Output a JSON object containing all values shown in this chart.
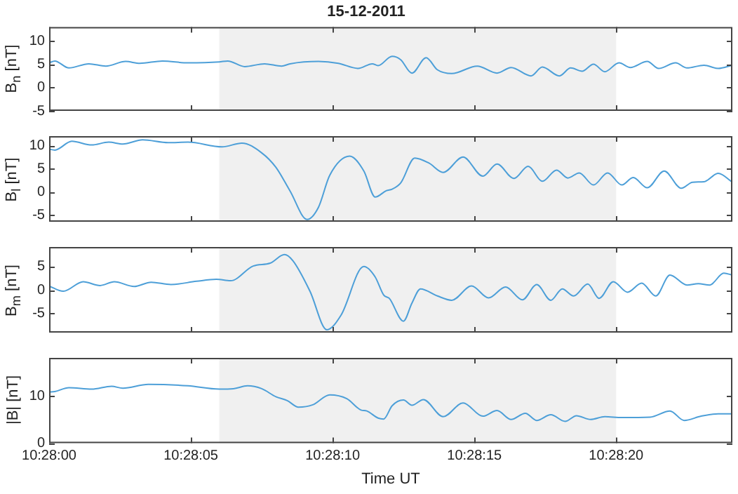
{
  "chart_data": [
    {
      "type": "line",
      "title": "15-12-2011",
      "ylabel": "B$_{n}$ [nT]",
      "tick_labels": "y",
      "xlim": [
        10.466667,
        10.473362
      ],
      "xticks": [
        10.466667,
        10.468056,
        10.469445,
        10.470834,
        10.472223
      ],
      "ylim": [
        -5,
        13
      ],
      "yticks": [
        -5,
        0,
        5,
        10
      ],
      "bands": [
        {
          "axis": "x",
          "from": 10.468334,
          "to": 10.472223,
          "color": "#f0f0f0"
        }
      ],
      "x": [
        10.466667,
        10.466723,
        10.466861,
        10.467056,
        10.467223,
        10.467417,
        10.467556,
        10.467778,
        10.468028,
        10.468334,
        10.468417,
        10.468584,
        10.468778,
        10.468945,
        10.469028,
        10.469306,
        10.469501,
        10.469695,
        10.469834,
        10.46989,
        10.470028,
        10.470111,
        10.470222,
        10.470361,
        10.470472,
        10.470612,
        10.470862,
        10.471056,
        10.471194,
        10.471389,
        10.4715,
        10.471667,
        10.471778,
        10.471889,
        10.472001,
        10.472112,
        10.472251,
        10.472362,
        10.472528,
        10.472639,
        10.472806,
        10.472917,
        10.473084,
        10.473223,
        10.473362
      ],
      "series": [
        {
          "color": "#4d9fd8",
          "values": [
            5.3,
            5.7,
            4.2,
            5.1,
            4.6,
            5.6,
            5.2,
            5.7,
            5.3,
            5.5,
            5.7,
            4.5,
            5.1,
            4.6,
            5.1,
            5.6,
            5.2,
            4.1,
            5.1,
            4.7,
            6.7,
            6.0,
            3.1,
            6.4,
            3.8,
            3.0,
            4.6,
            3.1,
            4.3,
            2.5,
            4.4,
            2.5,
            4.2,
            3.5,
            5.0,
            3.4,
            5.3,
            4.3,
            5.6,
            4.1,
            5.3,
            4.2,
            4.8,
            4.1,
            4.8
          ]
        }
      ]
    },
    {
      "type": "line",
      "ylabel": "B$_{l}$ [nT]",
      "tick_labels": "y",
      "xlim": [
        10.466667,
        10.473362
      ],
      "xticks": [
        10.466667,
        10.468056,
        10.469445,
        10.470834,
        10.472223
      ],
      "ylim": [
        -6.4,
        12
      ],
      "yticks": [
        -5,
        0,
        5,
        10
      ],
      "bands": [
        {
          "axis": "x",
          "from": 10.468334,
          "to": 10.472223,
          "color": "#f0f0f0"
        }
      ],
      "x": [
        10.466667,
        10.466723,
        10.466889,
        10.467084,
        10.467251,
        10.46739,
        10.467583,
        10.467834,
        10.468028,
        10.468362,
        10.468556,
        10.46875,
        10.468889,
        10.469028,
        10.469195,
        10.469306,
        10.469417,
        10.469612,
        10.469751,
        10.469862,
        10.469973,
        10.470028,
        10.470111,
        10.47025,
        10.470389,
        10.470528,
        10.470723,
        10.470917,
        10.471056,
        10.471222,
        10.471361,
        10.4715,
        10.471639,
        10.47175,
        10.471861,
        10.472001,
        10.472139,
        10.472279,
        10.47239,
        10.472528,
        10.472694,
        10.472861,
        10.472972,
        10.473084,
        10.473223,
        10.473362
      ],
      "series": [
        {
          "color": "#4d9fd8",
          "values": [
            9.2,
            9.0,
            10.9,
            10.1,
            10.7,
            10.3,
            11.2,
            10.6,
            10.7,
            9.7,
            10.5,
            8.4,
            5.3,
            0.2,
            -5.9,
            -3.3,
            3.6,
            7.7,
            4.5,
            -1.1,
            0.3,
            0.6,
            1.9,
            7.3,
            6.2,
            4.2,
            7.5,
            3.4,
            6.0,
            2.9,
            5.5,
            2.3,
            4.7,
            3.0,
            4.1,
            1.5,
            4.1,
            1.5,
            3.1,
            0.9,
            4.5,
            0.8,
            2.1,
            2.2,
            4.0,
            2.1
          ]
        }
      ]
    },
    {
      "type": "line",
      "ylabel": "B$_{m}$ [nT]",
      "tick_labels": "y",
      "xlim": [
        10.466667,
        10.473362
      ],
      "xticks": [
        10.466667,
        10.468056,
        10.469445,
        10.470834,
        10.472223
      ],
      "ylim": [
        -9,
        9
      ],
      "yticks": [
        -5,
        0,
        5
      ],
      "bands": [
        {
          "axis": "x",
          "from": 10.468334,
          "to": 10.472223,
          "color": "#f0f0f0"
        }
      ],
      "x": [
        10.466667,
        10.466806,
        10.467001,
        10.467167,
        10.467306,
        10.4675,
        10.467667,
        10.467861,
        10.468112,
        10.468306,
        10.468445,
        10.468667,
        10.468833,
        10.468972,
        10.469056,
        10.469223,
        10.469389,
        10.469528,
        10.469751,
        10.469862,
        10.469945,
        10.47,
        10.470139,
        10.470222,
        10.470306,
        10.470472,
        10.470612,
        10.470806,
        10.470973,
        10.471139,
        10.471305,
        10.471445,
        10.471583,
        10.471695,
        10.471806,
        10.471945,
        10.472056,
        10.472195,
        10.472334,
        10.472473,
        10.472611,
        10.47275,
        10.472917,
        10.473028,
        10.473139,
        10.473278,
        10.473362
      ],
      "series": [
        {
          "color": "#4d9fd8",
          "values": [
            0.8,
            -0.3,
            1.7,
            0.9,
            1.7,
            0.7,
            1.6,
            1.1,
            1.8,
            2.2,
            1.9,
            5.0,
            5.6,
            7.4,
            6.1,
            -0.3,
            -8.4,
            -5.3,
            4.9,
            2.7,
            -1.1,
            -1.8,
            -6.6,
            -2.8,
            0.2,
            -1.3,
            -2.2,
            0.8,
            -1.7,
            0.6,
            -2.1,
            1.1,
            -2.2,
            0.2,
            -1.3,
            1.2,
            -1.8,
            1.7,
            -0.5,
            1.4,
            -1.3,
            3.1,
            1.0,
            1.3,
            1.0,
            3.5,
            3.1
          ]
        }
      ]
    },
    {
      "type": "line",
      "ylabel": "|B| [nT]",
      "xlabel": "Time UT",
      "xlim": [
        10.466667,
        10.473362
      ],
      "xticks": [
        {
          "value": 10.466667,
          "label": "10:28:00"
        },
        {
          "value": 10.468056,
          "label": "10:28:05"
        },
        {
          "value": 10.469445,
          "label": "10:28:10"
        },
        {
          "value": 10.470834,
          "label": "10:28:15"
        },
        {
          "value": 10.472223,
          "label": "10:28:20"
        }
      ],
      "ylim": [
        0,
        18
      ],
      "yticks": [
        0,
        10
      ],
      "bands": [
        {
          "axis": "x",
          "from": 10.468334,
          "to": 10.472223,
          "color": "#f0f0f0"
        }
      ],
      "x": [
        10.466667,
        10.466723,
        10.466861,
        10.467084,
        10.467279,
        10.46739,
        10.467639,
        10.468028,
        10.468334,
        10.468473,
        10.468611,
        10.46875,
        10.468889,
        10.469,
        10.469111,
        10.46925,
        10.469417,
        10.469584,
        10.469723,
        10.469779,
        10.46989,
        10.469945,
        10.470028,
        10.470139,
        10.470222,
        10.470334,
        10.470528,
        10.470723,
        10.470917,
        10.471056,
        10.471194,
        10.471333,
        10.471445,
        10.471583,
        10.471723,
        10.471834,
        10.471973,
        10.472112,
        10.472279,
        10.472556,
        10.47275,
        10.472889,
        10.473056,
        10.473223,
        10.473362
      ],
      "series": [
        {
          "color": "#4d9fd8",
          "values": [
            10.8,
            10.9,
            11.7,
            11.4,
            12.0,
            11.6,
            12.4,
            12.1,
            11.4,
            11.5,
            12.1,
            11.5,
            9.8,
            9.0,
            7.6,
            8.1,
            10.2,
            9.4,
            7.0,
            6.8,
            5.3,
            5.1,
            7.9,
            9.1,
            8.0,
            9.2,
            5.6,
            8.5,
            5.7,
            6.9,
            5.0,
            6.3,
            4.8,
            6.0,
            4.6,
            5.8,
            5.0,
            5.6,
            5.4,
            5.5,
            6.8,
            4.8,
            5.7,
            6.2,
            6.2
          ]
        }
      ]
    }
  ]
}
